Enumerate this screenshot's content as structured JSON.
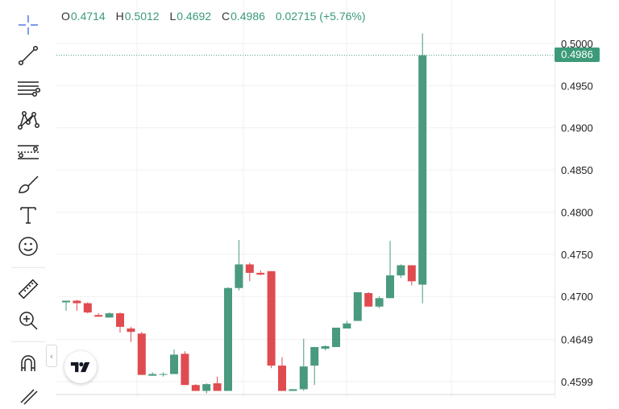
{
  "legend": {
    "open_key": "O",
    "open": "0.4714",
    "high_key": "H",
    "high": "0.5012",
    "low_key": "L",
    "low": "0.4692",
    "close_key": "C",
    "close": "0.4986",
    "change": "0.02715 (+5.76%)"
  },
  "last_price_label": "0.4986",
  "toolbar": {
    "tools": [
      "crosshair-icon",
      "trend-line-icon",
      "fib-retracement-icon",
      "pattern-icon",
      "prediction-icon",
      "brush-icon",
      "text-icon",
      "emoji-icon",
      "ruler-icon",
      "zoom-in-icon",
      "magnet-icon",
      "lock-pencil-icon"
    ]
  },
  "colors": {
    "up": "#4a9a7f",
    "down": "#e04b4f",
    "tag": "#3d9a79",
    "legend_value": "#3a9a7a"
  },
  "chart_data": {
    "type": "candlestick",
    "y_ticks": [
      "0.5000",
      "0.4950",
      "0.4900",
      "0.4850",
      "0.4800",
      "0.4750",
      "0.4700",
      "0.4649",
      "0.4599"
    ],
    "ylim": [
      0.4588,
      0.5032
    ],
    "last_price": 0.4986,
    "candles": [
      {
        "o": 0.4693,
        "h": 0.4695,
        "l": 0.4683,
        "c": 0.4695
      },
      {
        "o": 0.4695,
        "h": 0.4696,
        "l": 0.4683,
        "c": 0.4692
      },
      {
        "o": 0.4692,
        "h": 0.4693,
        "l": 0.468,
        "c": 0.4681
      },
      {
        "o": 0.4678,
        "h": 0.468,
        "l": 0.4676,
        "c": 0.4676
      },
      {
        "o": 0.4675,
        "h": 0.4681,
        "l": 0.4675,
        "c": 0.468
      },
      {
        "o": 0.468,
        "h": 0.4681,
        "l": 0.4657,
        "c": 0.4664
      },
      {
        "o": 0.4662,
        "h": 0.4664,
        "l": 0.4646,
        "c": 0.4658
      },
      {
        "o": 0.4656,
        "h": 0.4658,
        "l": 0.4607,
        "c": 0.4607
      },
      {
        "o": 0.4606,
        "h": 0.461,
        "l": 0.4606,
        "c": 0.4608
      },
      {
        "o": 0.4608,
        "h": 0.461,
        "l": 0.4605,
        "c": 0.4608
      },
      {
        "o": 0.4608,
        "h": 0.4637,
        "l": 0.4608,
        "c": 0.4631
      },
      {
        "o": 0.4632,
        "h": 0.4635,
        "l": 0.4595,
        "c": 0.4595
      },
      {
        "o": 0.4595,
        "h": 0.4596,
        "l": 0.4588,
        "c": 0.4588
      },
      {
        "o": 0.4588,
        "h": 0.4597,
        "l": 0.4585,
        "c": 0.4596
      },
      {
        "o": 0.4597,
        "h": 0.4605,
        "l": 0.4588,
        "c": 0.4588
      },
      {
        "o": 0.4588,
        "h": 0.4711,
        "l": 0.4588,
        "c": 0.471
      },
      {
        "o": 0.471,
        "h": 0.4767,
        "l": 0.4707,
        "c": 0.4738
      },
      {
        "o": 0.4738,
        "h": 0.474,
        "l": 0.4718,
        "c": 0.4728
      },
      {
        "o": 0.4728,
        "h": 0.4731,
        "l": 0.4725,
        "c": 0.4726
      },
      {
        "o": 0.473,
        "h": 0.473,
        "l": 0.4615,
        "c": 0.4618
      },
      {
        "o": 0.4618,
        "h": 0.4628,
        "l": 0.4588,
        "c": 0.4588
      },
      {
        "o": 0.4588,
        "h": 0.459,
        "l": 0.4588,
        "c": 0.459
      },
      {
        "o": 0.459,
        "h": 0.465,
        "l": 0.4588,
        "c": 0.4617
      },
      {
        "o": 0.4618,
        "h": 0.464,
        "l": 0.4595,
        "c": 0.464
      },
      {
        "o": 0.4638,
        "h": 0.4642,
        "l": 0.4636,
        "c": 0.4641
      },
      {
        "o": 0.464,
        "h": 0.4663,
        "l": 0.464,
        "c": 0.4663
      },
      {
        "o": 0.4662,
        "h": 0.4671,
        "l": 0.4662,
        "c": 0.4668
      },
      {
        "o": 0.4671,
        "h": 0.4705,
        "l": 0.4671,
        "c": 0.4705
      },
      {
        "o": 0.4704,
        "h": 0.4705,
        "l": 0.4688,
        "c": 0.4688
      },
      {
        "o": 0.4688,
        "h": 0.47,
        "l": 0.4686,
        "c": 0.4698
      },
      {
        "o": 0.4698,
        "h": 0.4766,
        "l": 0.4698,
        "c": 0.4725
      },
      {
        "o": 0.4725,
        "h": 0.4738,
        "l": 0.4722,
        "c": 0.4737
      },
      {
        "o": 0.4737,
        "h": 0.4737,
        "l": 0.4713,
        "c": 0.4718
      },
      {
        "o": 0.4714,
        "h": 0.5012,
        "l": 0.4692,
        "c": 0.4986
      }
    ]
  }
}
